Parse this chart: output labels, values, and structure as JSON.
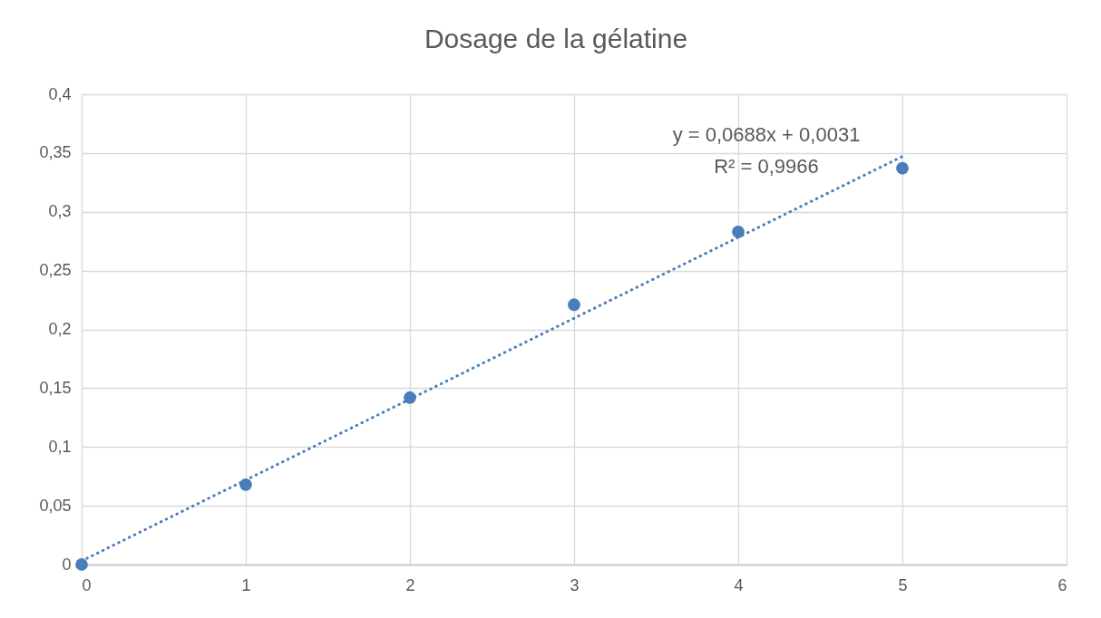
{
  "chart_data": {
    "type": "scatter",
    "title": "Dosage de la gélatine",
    "xlim": [
      0,
      6
    ],
    "xticks": [
      0,
      1,
      2,
      3,
      4,
      5,
      6
    ],
    "ylim": [
      0,
      0.4
    ],
    "yticks": [
      {
        "value": 0,
        "label": "0"
      },
      {
        "value": 0.05,
        "label": "0,05"
      },
      {
        "value": 0.1,
        "label": "0,1"
      },
      {
        "value": 0.15,
        "label": "0,15"
      },
      {
        "value": 0.2,
        "label": "0,2"
      },
      {
        "value": 0.25,
        "label": "0,25"
      },
      {
        "value": 0.3,
        "label": "0,3"
      },
      {
        "value": 0.35,
        "label": "0,35"
      },
      {
        "value": 0.4,
        "label": "0,4"
      }
    ],
    "grid": true,
    "series": [
      {
        "color": "#4a7ebb",
        "marker": "circle",
        "x": [
          0,
          1,
          2,
          3,
          4,
          5
        ],
        "values": [
          0,
          0.068,
          0.142,
          0.221,
          0.283,
          0.337
        ]
      },
      {
        "type": "line",
        "color": "#4a7ebb",
        "marker": "none",
        "line_style": "dotted",
        "x": [
          0,
          5
        ],
        "values": [
          0.0031,
          0.3471
        ]
      }
    ],
    "annotations": [
      "y = 0,0688x + 0,0031",
      "R² = 0,9966"
    ]
  }
}
